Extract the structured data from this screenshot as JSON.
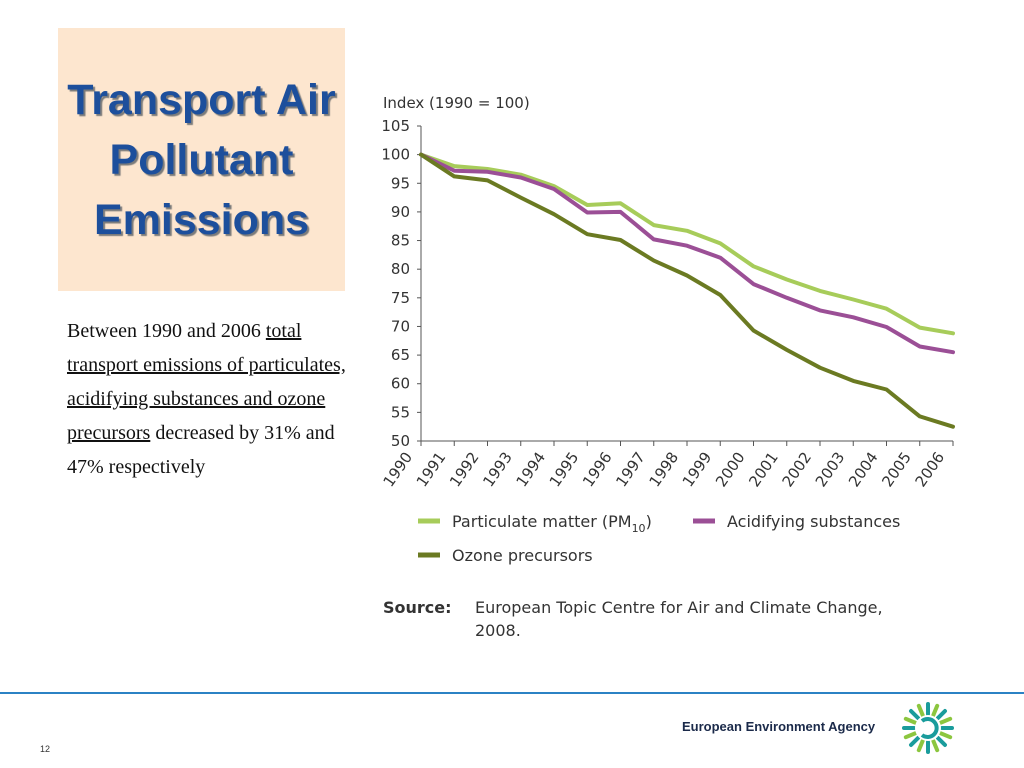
{
  "slide": {
    "title": "Transport Air Pollutant Emissions",
    "body_text": {
      "p1": "Between 1990 and 2006 ",
      "p2": "total transport emissions of particulates, acidifying substances and ozone precursors",
      "p3": " decreased by 31% and 47% respectively"
    },
    "page_number": "12",
    "agency_name": "European Environment Agency"
  },
  "chart_data": {
    "type": "line",
    "ylabel": "Index (1990 = 100)",
    "ylim": [
      50,
      105
    ],
    "yticks": [
      105,
      100,
      95,
      90,
      85,
      80,
      75,
      70,
      65,
      60,
      55,
      50
    ],
    "x": [
      "1990",
      "1991",
      "1992",
      "1993",
      "1994",
      "1995",
      "1996",
      "1997",
      "1998",
      "1999",
      "2000",
      "2001",
      "2002",
      "2003",
      "2004",
      "2005",
      "2006"
    ],
    "series": [
      {
        "name": "Particulate matter (PM10)",
        "color": "#a7cc5a",
        "values": [
          100,
          98,
          97.5,
          96.5,
          94.5,
          91.2,
          91.5,
          87.7,
          86.7,
          84.5,
          80.5,
          78.2,
          76.2,
          74.7,
          73.1,
          69.8,
          68.8
        ]
      },
      {
        "name": "Acidifying substances",
        "color": "#9b4f96",
        "values": [
          100,
          97.2,
          97,
          96,
          94,
          89.9,
          90,
          85.2,
          84.1,
          82,
          77.4,
          75,
          72.8,
          71.6,
          69.9,
          66.5,
          65.5
        ]
      },
      {
        "name": "Ozone precursors",
        "color": "#6b7a22",
        "values": [
          100,
          96.2,
          95.5,
          92.5,
          89.6,
          86.1,
          85.1,
          81.5,
          78.9,
          75.5,
          69.3,
          65.9,
          62.8,
          60.5,
          59,
          54.3,
          52.5
        ]
      }
    ],
    "legend": {
      "entries": [
        {
          "label": "Particulate matter (PM",
          "sub": "10",
          "tail": ")",
          "color": "#a7cc5a"
        },
        {
          "label": "Acidifying substances",
          "color": "#9b4f96"
        },
        {
          "label": "Ozone precursors",
          "color": "#6b7a22"
        }
      ],
      "placement": "bottom"
    },
    "source_label": "Source:",
    "source_text_line1": "European Topic Centre for Air and Climate Change,",
    "source_text_line2": "2008.",
    "grid": false
  }
}
